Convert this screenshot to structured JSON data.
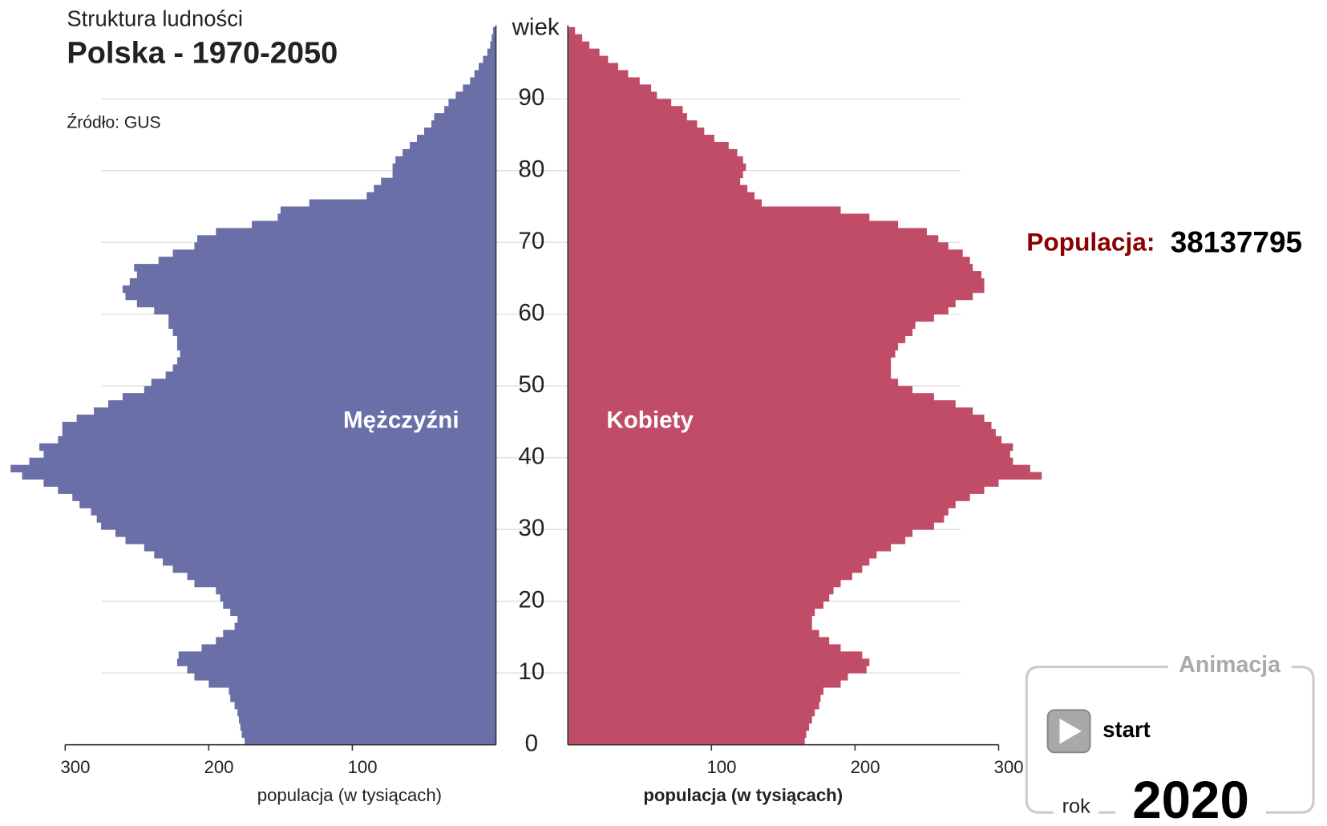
{
  "header": {
    "subtitle": "Struktura ludności",
    "title": "Polska - 1970-2050",
    "source": "Źródło: GUS"
  },
  "chart_data": {
    "type": "pyramid",
    "ylabel": "wiek",
    "xlabel": "populacja (w tysiącach)",
    "categories": [
      0,
      null,
      null,
      null,
      null,
      null,
      null,
      null,
      null,
      null,
      10,
      null,
      null,
      null,
      null,
      null,
      null,
      null,
      null,
      null,
      20,
      null,
      null,
      null,
      null,
      null,
      null,
      null,
      null,
      null,
      30,
      null,
      null,
      null,
      null,
      null,
      null,
      null,
      null,
      null,
      40,
      null,
      null,
      null,
      null,
      null,
      null,
      null,
      null,
      null,
      50,
      null,
      null,
      null,
      null,
      null,
      null,
      null,
      null,
      null,
      60,
      null,
      null,
      null,
      null,
      null,
      null,
      null,
      null,
      null,
      70,
      null,
      null,
      null,
      null,
      null,
      null,
      null,
      null,
      null,
      80,
      null,
      null,
      null,
      null,
      null,
      null,
      null,
      null,
      null,
      90,
      null,
      null,
      null,
      null,
      null,
      null,
      null,
      null,
      null
    ],
    "xlim": [
      0,
      300
    ],
    "xticks": [
      100,
      200,
      300
    ],
    "grid": true,
    "series": [
      {
        "name": "Mężczyźni",
        "color": "#6a6fa8",
        "values": [
          175,
          177,
          178,
          179,
          180,
          182,
          185,
          186,
          200,
          210,
          215,
          222,
          221,
          205,
          195,
          190,
          182,
          180,
          185,
          190,
          192,
          195,
          210,
          215,
          225,
          232,
          238,
          245,
          258,
          265,
          275,
          278,
          282,
          290,
          295,
          305,
          315,
          330,
          338,
          325,
          315,
          318,
          305,
          302,
          302,
          292,
          280,
          270,
          260,
          245,
          240,
          230,
          225,
          222,
          220,
          222,
          222,
          225,
          228,
          228,
          238,
          250,
          258,
          260,
          255,
          250,
          252,
          235,
          225,
          210,
          208,
          195,
          170,
          152,
          150,
          130,
          90,
          85,
          80,
          72,
          72,
          70,
          65,
          60,
          55,
          50,
          45,
          43,
          36,
          33,
          28,
          23,
          18,
          15,
          12,
          9,
          6,
          4,
          3,
          2
        ]
      },
      {
        "name": "Kobiety",
        "color": "#c04c68",
        "values": [
          165,
          166,
          168,
          170,
          172,
          175,
          176,
          178,
          190,
          195,
          208,
          210,
          205,
          190,
          182,
          175,
          170,
          170,
          172,
          178,
          182,
          185,
          190,
          198,
          205,
          210,
          215,
          225,
          235,
          240,
          255,
          262,
          265,
          270,
          280,
          290,
          300,
          330,
          322,
          310,
          308,
          310,
          302,
          298,
          295,
          290,
          282,
          270,
          255,
          240,
          230,
          225,
          225,
          225,
          228,
          230,
          235,
          240,
          242,
          255,
          265,
          270,
          282,
          290,
          290,
          288,
          282,
          280,
          275,
          265,
          258,
          250,
          230,
          210,
          190,
          135,
          130,
          125,
          120,
          122,
          124,
          122,
          118,
          112,
          102,
          95,
          90,
          83,
          80,
          72,
          62,
          58,
          50,
          42,
          35,
          28,
          22,
          15,
          10,
          5
        ]
      }
    ]
  },
  "population": {
    "label": "Populacja:",
    "value": 38137795
  },
  "animation": {
    "title": "Animacja",
    "button": "start",
    "year_label": "rok",
    "year": 2020
  }
}
